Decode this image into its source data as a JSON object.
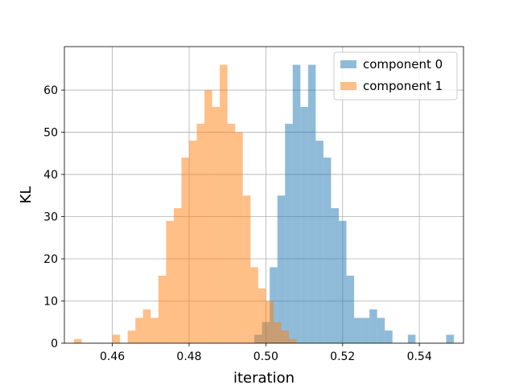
{
  "chart_data": {
    "type": "bar",
    "title": "",
    "xlabel": "iteration",
    "ylabel": "KL",
    "xlim": [
      0.4475,
      0.5515
    ],
    "ylim": [
      0,
      70.3
    ],
    "grid": true,
    "legend_position": "top-right",
    "x_ticks": [
      0.46,
      0.48,
      0.5,
      0.52,
      0.54
    ],
    "x_tick_labels": [
      "0.46",
      "0.48",
      "0.50",
      "0.52",
      "0.54"
    ],
    "y_ticks": [
      0,
      10,
      20,
      30,
      40,
      50,
      60
    ],
    "y_tick_labels": [
      "0",
      "10",
      "20",
      "30",
      "40",
      "50",
      "60"
    ],
    "bin_width": 0.002,
    "series": [
      {
        "name": "component 0",
        "color": "#1f77b4",
        "opacity": 0.5,
        "bin_starts": [
          0.497,
          0.499,
          0.501,
          0.503,
          0.505,
          0.507,
          0.509,
          0.511,
          0.513,
          0.515,
          0.517,
          0.519,
          0.521,
          0.523,
          0.525,
          0.527,
          0.529,
          0.531,
          0.533,
          0.535,
          0.537,
          0.539,
          0.541,
          0.543,
          0.545,
          0.547
        ],
        "counts": [
          2,
          5,
          18,
          35,
          52,
          66,
          56,
          66,
          48,
          44,
          32,
          29,
          16,
          6,
          6,
          8,
          6,
          3,
          0,
          0,
          2,
          0,
          0,
          0,
          0,
          2
        ]
      },
      {
        "name": "component 1",
        "color": "#ff7f0e",
        "opacity": 0.5,
        "bin_starts": [
          0.45,
          0.452,
          0.454,
          0.456,
          0.458,
          0.46,
          0.462,
          0.464,
          0.466,
          0.468,
          0.47,
          0.472,
          0.474,
          0.476,
          0.478,
          0.48,
          0.482,
          0.484,
          0.486,
          0.488,
          0.49,
          0.492,
          0.494,
          0.496,
          0.498,
          0.5,
          0.502,
          0.504,
          0.506,
          0.508
        ],
        "counts": [
          1,
          0,
          0,
          0,
          0,
          2,
          0,
          3,
          6,
          8,
          6,
          16,
          29,
          32,
          44,
          48,
          52,
          60,
          56,
          66,
          52,
          50,
          35,
          18,
          13,
          10,
          5,
          3,
          1,
          0
        ]
      }
    ]
  }
}
